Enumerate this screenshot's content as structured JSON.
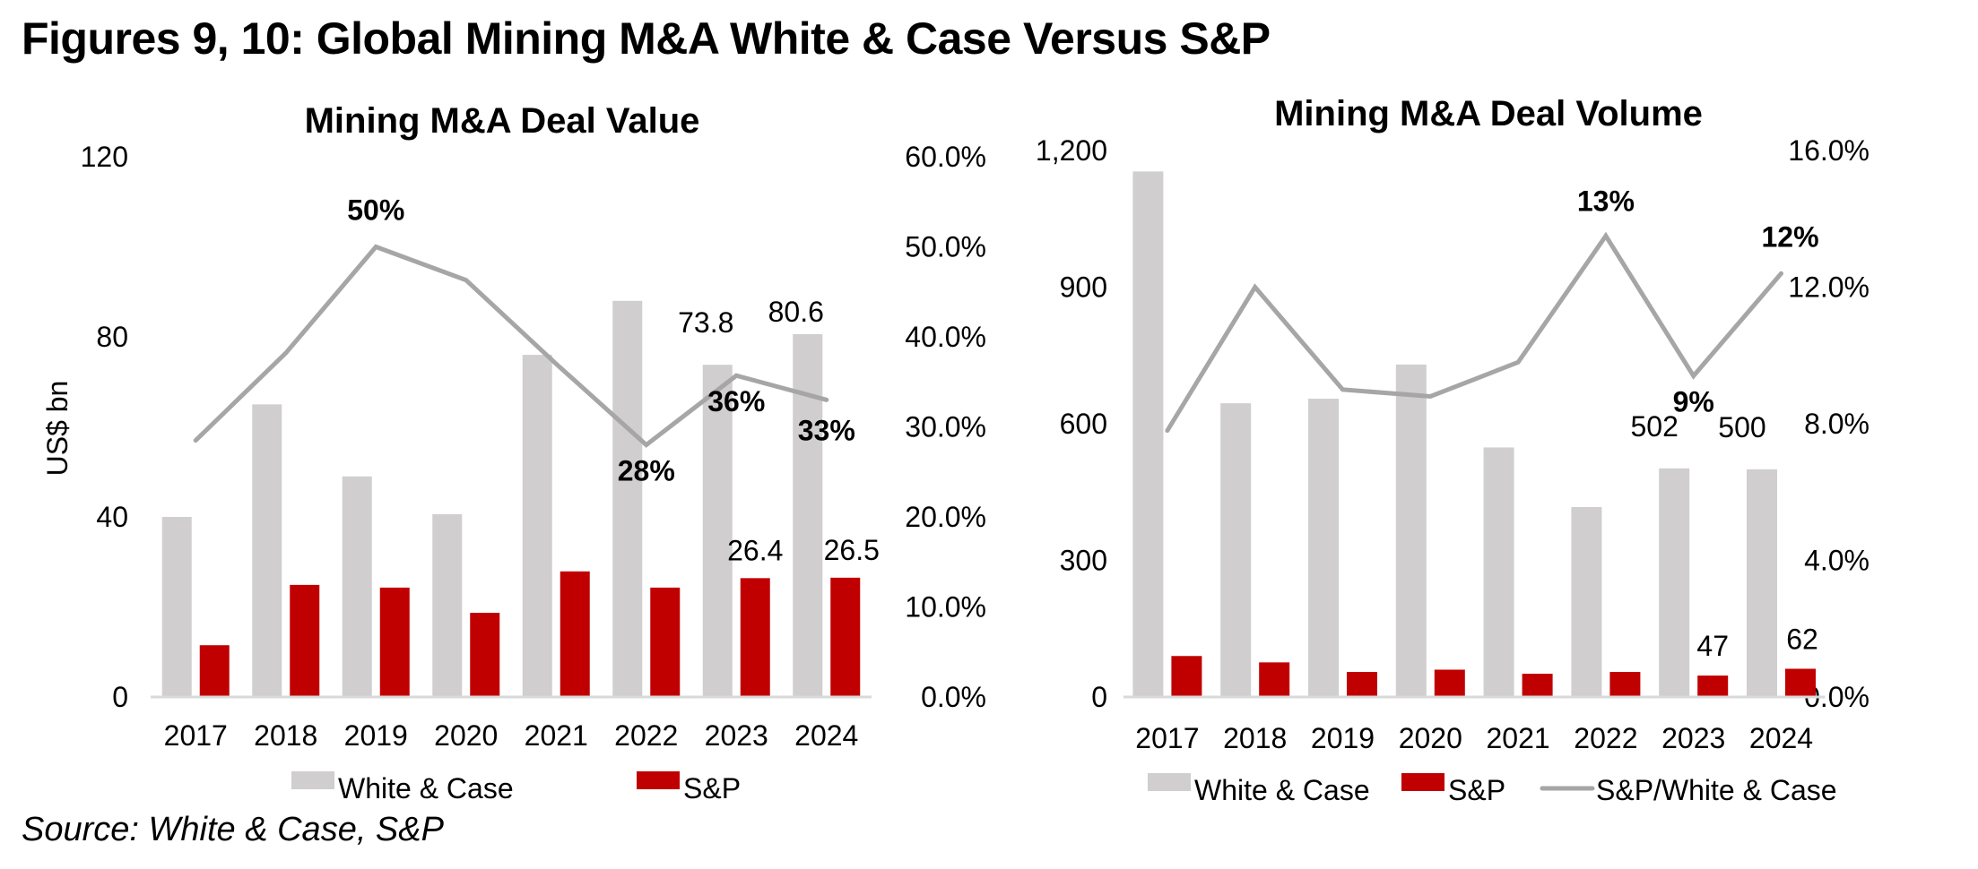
{
  "page": {
    "title": "Figures 9, 10: Global Mining M&A White & Case Versus S&P",
    "source": "Source: White & Case, S&P"
  },
  "colors": {
    "white_case": "#d0cecf",
    "sp": "#c00000",
    "ratio_line": "#a6a6a6"
  },
  "chart_data": [
    {
      "type": "bar",
      "title": "Mining M&A Deal Value",
      "categories": [
        "2017",
        "2018",
        "2019",
        "2020",
        "2021",
        "2022",
        "2023",
        "2024"
      ],
      "ylabel": "US$ bn",
      "ylim": [
        0,
        120
      ],
      "yticks": [
        "0",
        "40",
        "80",
        "120"
      ],
      "y2lim": [
        0,
        0.6
      ],
      "y2ticks": [
        "0.0%",
        "10.0%",
        "20.0%",
        "30.0%",
        "40.0%",
        "50.0%",
        "60.0%"
      ],
      "series": [
        {
          "name": "White & Case",
          "kind": "bar",
          "axis": "left",
          "values": [
            40,
            65,
            49,
            40.6,
            76,
            88,
            73.8,
            80.6
          ],
          "labels": [
            null,
            null,
            null,
            null,
            null,
            null,
            "73.8",
            "80.6"
          ]
        },
        {
          "name": "S&P",
          "kind": "bar",
          "axis": "left",
          "values": [
            11.5,
            24.9,
            24.3,
            18.7,
            27.9,
            24.3,
            26.4,
            26.5
          ],
          "labels": [
            null,
            null,
            null,
            null,
            null,
            null,
            "26.4",
            "26.5"
          ]
        },
        {
          "name": "S&P/White & Case",
          "kind": "line",
          "axis": "right",
          "values": [
            0.285,
            0.382,
            0.5,
            0.463,
            0.37,
            0.28,
            0.357,
            0.33
          ],
          "labels": [
            null,
            null,
            "50%",
            null,
            null,
            "28%",
            "36%",
            "33%"
          ]
        }
      ],
      "legend": [
        "White & Case",
        "S&P"
      ],
      "legend_position": "bottom",
      "grid": false
    },
    {
      "type": "bar",
      "title": "Mining M&A Deal Volume",
      "categories": [
        "2017",
        "2018",
        "2019",
        "2020",
        "2021",
        "2022",
        "2023",
        "2024"
      ],
      "ylabel": "",
      "ylim": [
        0,
        1200
      ],
      "yticks": [
        "0",
        "300",
        "600",
        "900",
        "1,200"
      ],
      "y2lim": [
        0,
        0.16
      ],
      "y2ticks": [
        "0.0%",
        "4.0%",
        "8.0%",
        "12.0%",
        "16.0%"
      ],
      "series": [
        {
          "name": "White & Case",
          "kind": "bar",
          "axis": "left",
          "values": [
            1154,
            645,
            655,
            730,
            548,
            417,
            502,
            500
          ],
          "labels": [
            null,
            null,
            null,
            null,
            null,
            null,
            "502",
            "500"
          ]
        },
        {
          "name": "S&P",
          "kind": "bar",
          "axis": "left",
          "values": [
            90,
            76,
            55,
            60,
            51,
            55,
            47,
            62
          ],
          "labels": [
            null,
            null,
            null,
            null,
            null,
            null,
            "47",
            "62"
          ]
        },
        {
          "name": "S&P/White & Case",
          "kind": "line",
          "axis": "right",
          "values": [
            0.078,
            0.12,
            0.09,
            0.088,
            0.098,
            0.135,
            0.094,
            0.124
          ],
          "labels": [
            null,
            null,
            null,
            null,
            null,
            "13%",
            "9%",
            "12%"
          ]
        }
      ],
      "legend": [
        "White & Case",
        "S&P",
        "S&P/White & Case"
      ],
      "legend_position": "bottom",
      "grid": false
    }
  ]
}
